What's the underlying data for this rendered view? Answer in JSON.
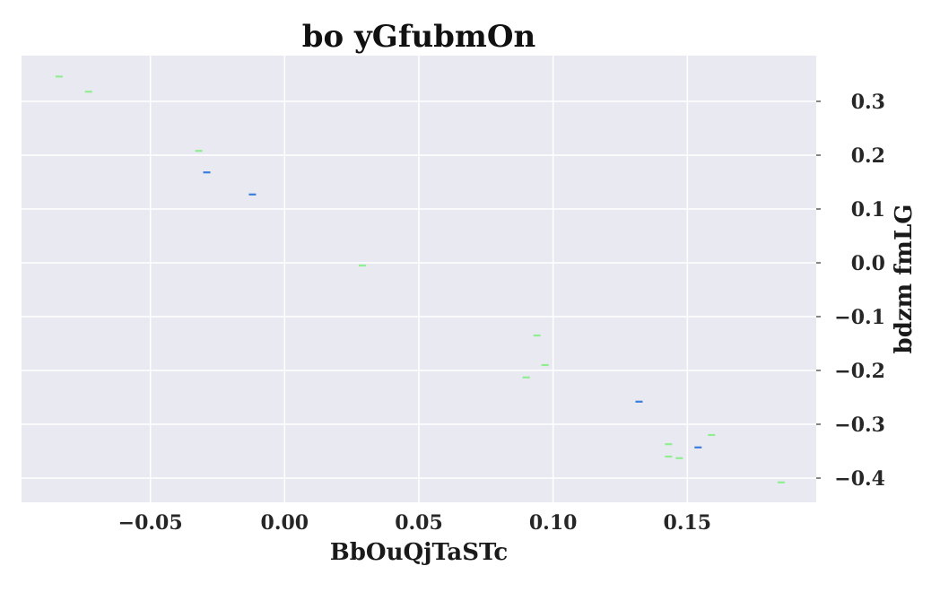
{
  "chart_data": {
    "type": "scatter",
    "title": "bo yGfubmOn",
    "xlabel": "BbOuQjTaSTc",
    "ylabel": "bdzm fmLG",
    "xlim": [
      -0.098,
      0.198
    ],
    "ylim": [
      -0.445,
      0.385
    ],
    "xticks": [
      -0.05,
      0.0,
      0.05,
      0.1,
      0.15
    ],
    "xtick_labels": [
      "−0.05",
      "0.00",
      "0.05",
      "0.10",
      "0.15"
    ],
    "yticks": [
      0.3,
      0.2,
      0.1,
      0.0,
      -0.1,
      -0.2,
      -0.3,
      -0.4
    ],
    "ytick_labels": [
      "0.3",
      "0.2",
      "0.1",
      "0.0",
      "−0.1",
      "−0.2",
      "−0.3",
      "−0.4"
    ],
    "y_axis_side": "right",
    "grid": true,
    "marker": "hline",
    "colors": {
      "background": "#e9e9f1",
      "grid": "#ffffff",
      "series_a": "#90ee90",
      "series_b": "#3b7ddd"
    },
    "series": [
      {
        "color": "#90ee90",
        "points": [
          {
            "x": -0.084,
            "y": 0.346
          },
          {
            "x": -0.073,
            "y": 0.318
          },
          {
            "x": -0.032,
            "y": 0.208
          },
          {
            "x": 0.029,
            "y": -0.005
          },
          {
            "x": 0.094,
            "y": -0.135
          },
          {
            "x": 0.097,
            "y": -0.19
          },
          {
            "x": 0.09,
            "y": -0.213
          },
          {
            "x": 0.159,
            "y": -0.32
          },
          {
            "x": 0.143,
            "y": -0.337
          },
          {
            "x": 0.143,
            "y": -0.36
          },
          {
            "x": 0.147,
            "y": -0.363
          },
          {
            "x": 0.185,
            "y": -0.408
          }
        ]
      },
      {
        "color": "#3b7ddd",
        "points": [
          {
            "x": -0.029,
            "y": 0.168
          },
          {
            "x": -0.012,
            "y": 0.127
          },
          {
            "x": 0.132,
            "y": -0.258
          },
          {
            "x": 0.154,
            "y": -0.343
          }
        ]
      }
    ]
  }
}
